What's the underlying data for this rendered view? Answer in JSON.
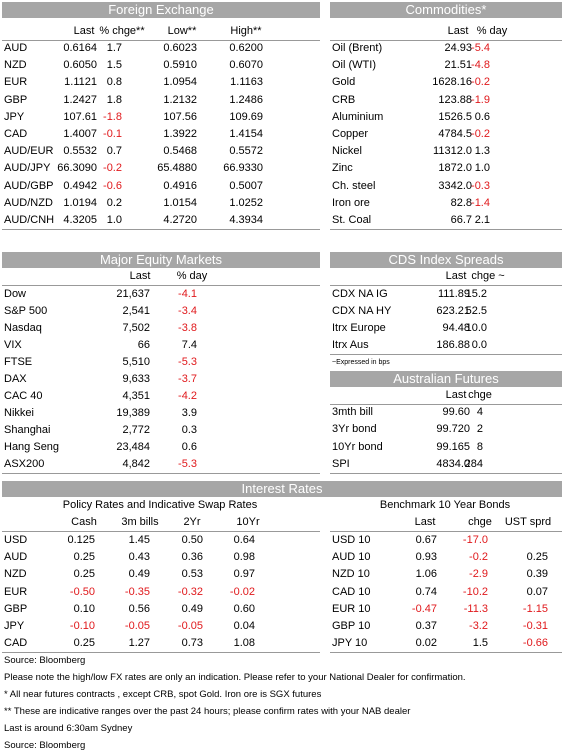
{
  "foreign_exchange": {
    "title": "Foreign Exchange",
    "columns": [
      "Last",
      "% chge**",
      "Low**",
      "High**"
    ],
    "rows": [
      [
        "AUD",
        "0.6164",
        "1.7",
        "0.6023",
        "0.6200"
      ],
      [
        "NZD",
        "0.6050",
        "1.5",
        "0.5910",
        "0.6070"
      ],
      [
        "EUR",
        "1.1121",
        "0.8",
        "1.0954",
        "1.1163"
      ],
      [
        "GBP",
        "1.2427",
        "1.8",
        "1.2132",
        "1.2486"
      ],
      [
        "JPY",
        "107.61",
        "-1.8",
        "107.56",
        "109.69"
      ],
      [
        "CAD",
        "1.4007",
        "-0.1",
        "1.3922",
        "1.4154"
      ],
      [
        "AUD/EUR",
        "0.5532",
        "0.7",
        "0.5468",
        "0.5572"
      ],
      [
        "AUD/JPY",
        "66.3090",
        "-0.2",
        "65.4880",
        "66.9330"
      ],
      [
        "AUD/GBP",
        "0.4942",
        "-0.6",
        "0.4916",
        "0.5007"
      ],
      [
        "AUD/NZD",
        "1.0194",
        "0.2",
        "1.0154",
        "1.0252"
      ],
      [
        "AUD/CNH",
        "4.3205",
        "1.0",
        "4.2720",
        "4.3934"
      ]
    ]
  },
  "commodities": {
    "title": "Commodities*",
    "columns": [
      "Last",
      "% day"
    ],
    "rows": [
      [
        "Oil (Brent)",
        "24.93",
        "-5.4"
      ],
      [
        "Oil (WTI)",
        "21.51",
        "-4.8"
      ],
      [
        "Gold",
        "1628.16",
        "-0.2"
      ],
      [
        "CRB",
        "123.88",
        "-1.9"
      ],
      [
        "Aluminium",
        "1526.5",
        "0.6"
      ],
      [
        "Copper",
        "4784.5",
        "-0.2"
      ],
      [
        "Nickel",
        "11312.0",
        "1.3"
      ],
      [
        "Zinc",
        "1872.0",
        "1.0"
      ],
      [
        "Ch. steel",
        "3342.0",
        "-0.3"
      ],
      [
        "Iron ore",
        "82.8",
        "-1.4"
      ],
      [
        "St. Coal",
        "66.7",
        "2.1"
      ]
    ]
  },
  "equity": {
    "title": "Major Equity Markets",
    "columns": [
      "Last",
      "% day"
    ],
    "rows": [
      [
        "Dow",
        "21,637",
        "-4.1"
      ],
      [
        "S&P 500",
        "2,541",
        "-3.4"
      ],
      [
        "Nasdaq",
        "7,502",
        "-3.8"
      ],
      [
        "VIX",
        "66",
        "7.4"
      ],
      [
        "FTSE",
        "5,510",
        "-5.3"
      ],
      [
        "DAX",
        "9,633",
        "-3.7"
      ],
      [
        "CAC 40",
        "4,351",
        "-4.2"
      ],
      [
        "Nikkei",
        "19,389",
        "3.9"
      ],
      [
        "Shanghai",
        "2,772",
        "0.3"
      ],
      [
        "Hang Seng",
        "23,484",
        "0.6"
      ],
      [
        "ASX200",
        "4,842",
        "-5.3"
      ]
    ]
  },
  "cds": {
    "title": "CDS Index Spreads",
    "columns": [
      "Last",
      "chge ~"
    ],
    "rows": [
      [
        "CDX NA IG",
        "111.89",
        "15.2"
      ],
      [
        "CDX NA HY",
        "623.21",
        "52.5"
      ],
      [
        "Itrx Europe",
        "94.48",
        "10.0"
      ],
      [
        "Itrx Aus",
        "186.88",
        "0.0"
      ]
    ],
    "note": "~Expressed in bps"
  },
  "futures": {
    "title": "Australian Futures",
    "columns": [
      "Last",
      "chge"
    ],
    "rows": [
      [
        "3mth bill",
        "99.60",
        "4"
      ],
      [
        "3Yr bond",
        "99.720",
        "2"
      ],
      [
        "10Yr bond",
        "99.165",
        "8"
      ],
      [
        "SPI",
        "4834.0",
        "284"
      ]
    ]
  },
  "interest_rates": {
    "title": "Interest Rates",
    "policy": {
      "title": "Policy Rates and Indicative Swap Rates",
      "columns": [
        "Cash",
        "3m bills",
        "2Yr",
        "10Yr"
      ],
      "rows": [
        [
          "USD",
          "0.125",
          "1.45",
          "0.50",
          "0.64"
        ],
        [
          "AUD",
          "0.25",
          "0.43",
          "0.36",
          "0.98"
        ],
        [
          "NZD",
          "0.25",
          "0.49",
          "0.53",
          "0.97"
        ],
        [
          "EUR",
          "-0.50",
          "-0.35",
          "-0.32",
          "-0.02"
        ],
        [
          "GBP",
          "0.10",
          "0.56",
          "0.49",
          "0.60"
        ],
        [
          "JPY",
          "-0.10",
          "-0.05",
          "-0.05",
          "0.04"
        ],
        [
          "CAD",
          "0.25",
          "1.27",
          "0.73",
          "1.08"
        ]
      ]
    },
    "bonds": {
      "title": "Benchmark 10 Year Bonds",
      "columns": [
        "Last",
        "chge",
        "UST sprd"
      ],
      "rows": [
        [
          "USD 10",
          "0.67",
          "-17.0"
        ],
        [
          "AUD 10",
          "0.93",
          "-0.2",
          "0.25"
        ],
        [
          "NZD 10",
          "1.06",
          "-2.9",
          "0.39"
        ],
        [
          "CAD 10",
          "0.74",
          "-10.2",
          "0.07"
        ],
        [
          "EUR 10",
          "-0.47",
          "-11.3",
          "-1.15"
        ],
        [
          "GBP 10",
          "0.37",
          "-3.2",
          "-0.31"
        ],
        [
          "JPY 10",
          "0.02",
          "1.5",
          "-0.66"
        ]
      ]
    }
  },
  "notes": [
    "Source: Bloomberg",
    "Please note the high/low FX rates are only an indication. Please refer to your National Dealer for confirmation.",
    "* All near futures contracts , except CRB, spot Gold. Iron ore is SGX futures",
    "** These are indicative ranges over the past 24 hours; please confirm rates with your NAB dealer",
    "Last is around 6:30am Sydney",
    "Source: Bloomberg"
  ]
}
